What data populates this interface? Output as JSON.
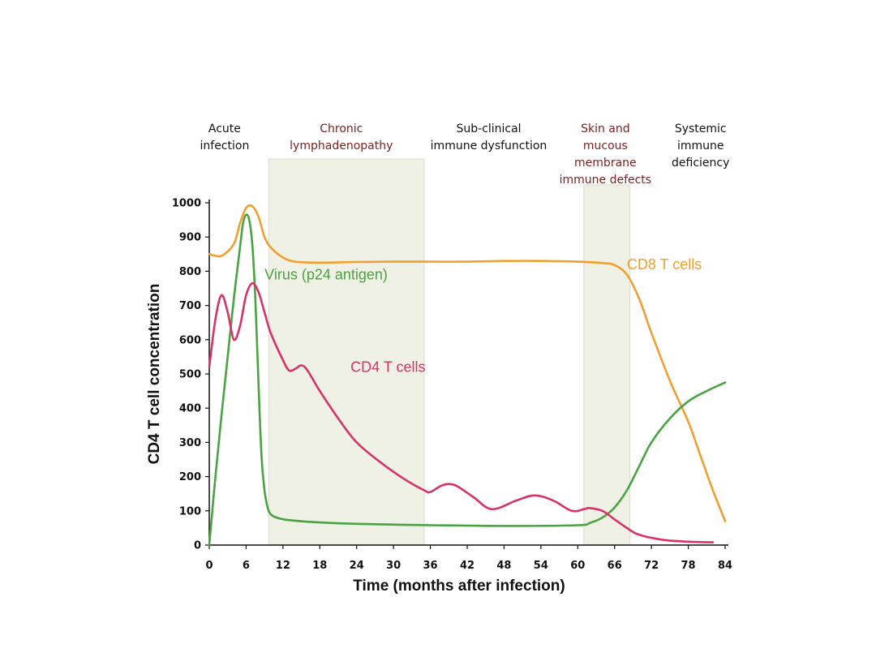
{
  "chart_data": {
    "type": "line",
    "title": "",
    "xlabel": "Time (months after infection)",
    "ylabel": "CD4 T cell concentration",
    "xlim": [
      0,
      84
    ],
    "ylim": [
      0,
      1000
    ],
    "xticks": [
      0,
      6,
      12,
      18,
      24,
      30,
      36,
      42,
      48,
      54,
      60,
      66,
      72,
      78,
      84
    ],
    "yticks": [
      0,
      100,
      200,
      300,
      400,
      500,
      600,
      700,
      800,
      900,
      1000
    ],
    "grid": false,
    "legend": "none",
    "phases": [
      {
        "lines": [
          "Acute",
          "infection"
        ],
        "color": "#111111",
        "x_center": 2.5
      },
      {
        "lines": [
          "Chronic",
          "lymphadenopathy"
        ],
        "color": "#7a1f1f",
        "x_center": 21.5,
        "shaded": [
          9.7,
          35
        ]
      },
      {
        "lines": [
          "Sub-clinical",
          "immune dysfunction"
        ],
        "color": "#111111",
        "x_center": 45.5
      },
      {
        "lines": [
          "Skin and",
          "mucous",
          "membrane",
          "immune defects"
        ],
        "color": "#7a1f1f",
        "x_center": 64.5,
        "shaded": [
          61,
          68.5
        ]
      },
      {
        "lines": [
          "Systemic",
          "immune",
          "deficiency"
        ],
        "color": "#111111",
        "x_center": 80
      }
    ],
    "series": [
      {
        "name": "CD8 T cells",
        "color": "#f0a030",
        "label_at": [
          68,
          820
        ],
        "x": [
          0,
          2,
          4,
          5,
          6,
          7,
          8,
          9,
          10,
          12,
          14,
          18,
          24,
          30,
          36,
          42,
          48,
          54,
          60,
          64,
          66,
          68,
          70,
          72,
          75,
          78,
          80,
          82,
          84
        ],
        "y": [
          850,
          845,
          880,
          940,
          985,
          990,
          960,
          900,
          870,
          840,
          828,
          825,
          827,
          828,
          828,
          828,
          830,
          830,
          828,
          824,
          818,
          790,
          720,
          620,
          480,
          360,
          260,
          160,
          70
        ]
      },
      {
        "name": "Virus (p24 antigen)",
        "color": "#4aa341",
        "label_at": [
          9,
          790
        ],
        "x": [
          0,
          1,
          2,
          3,
          4,
          5,
          5.5,
          6,
          6.5,
          7,
          7.5,
          8,
          8.5,
          9,
          9.5,
          10,
          11,
          13,
          18,
          24,
          36,
          48,
          60,
          62,
          64,
          66,
          68,
          70,
          72,
          75,
          78,
          81,
          84
        ],
        "y": [
          0,
          200,
          380,
          550,
          720,
          870,
          940,
          965,
          950,
          880,
          720,
          480,
          260,
          160,
          110,
          90,
          80,
          73,
          66,
          62,
          58,
          56,
          58,
          65,
          80,
          110,
          160,
          230,
          300,
          370,
          420,
          450,
          475
        ]
      },
      {
        "name": "CD4 T cells",
        "color": "#d6336c",
        "label_at": [
          23,
          520
        ],
        "x": [
          0,
          1,
          2,
          3,
          4,
          5,
          6,
          7,
          8,
          9,
          10,
          12,
          13,
          14,
          15,
          16,
          18,
          21,
          24,
          28,
          32,
          35,
          36,
          38,
          40,
          43,
          46,
          50,
          53,
          56,
          59,
          61,
          62,
          64,
          66,
          68,
          70,
          74,
          78,
          82
        ],
        "y": [
          520,
          660,
          730,
          680,
          600,
          640,
          730,
          765,
          740,
          680,
          620,
          540,
          510,
          515,
          525,
          510,
          450,
          370,
          300,
          240,
          190,
          160,
          155,
          175,
          175,
          140,
          105,
          130,
          145,
          130,
          100,
          105,
          108,
          100,
          75,
          50,
          30,
          15,
          10,
          8
        ]
      }
    ]
  }
}
